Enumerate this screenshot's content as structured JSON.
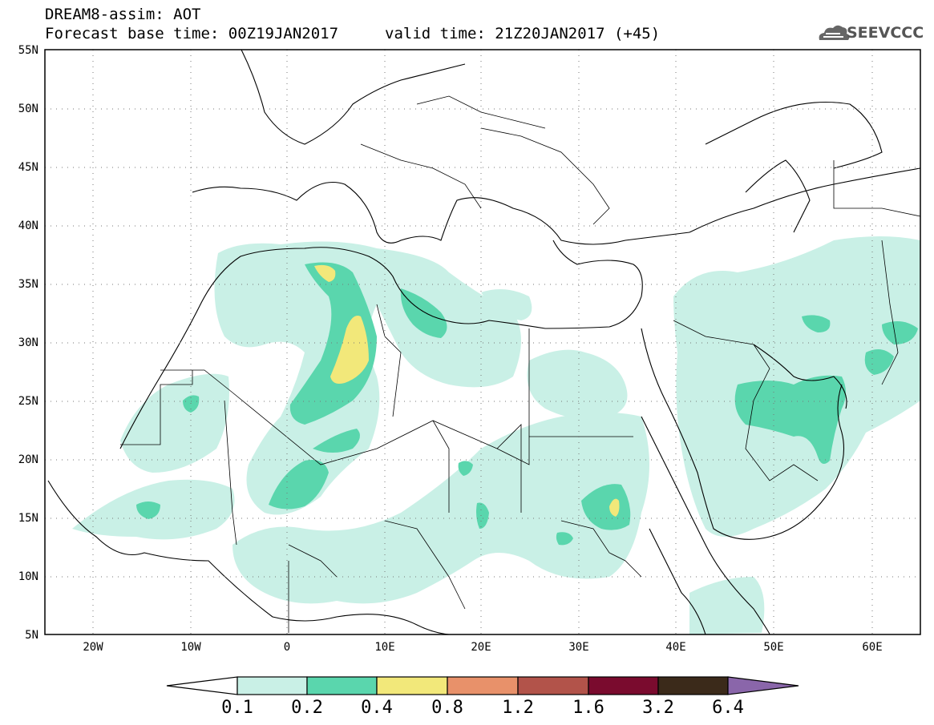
{
  "title": {
    "line1": "DREAM8-assim: AOT",
    "line2": "Forecast base time: 00Z19JAN2017",
    "valid": "valid time: 21Z20JAN2017 (+45)"
  },
  "logo": {
    "text": "SEEVCCC",
    "icon": "cloud-icon"
  },
  "map": {
    "lat_ticks": [
      "55N",
      "50N",
      "45N",
      "40N",
      "35N",
      "30N",
      "25N",
      "20N",
      "15N",
      "10N",
      "5N"
    ],
    "lon_ticks": [
      "20W",
      "10W",
      "0",
      "10E",
      "20E",
      "30E",
      "40E",
      "50E",
      "60E"
    ],
    "lat_range": [
      5,
      55
    ],
    "lon_range": [
      -25,
      65
    ]
  },
  "colorbar": {
    "labels": [
      "0.1",
      "0.2",
      "0.4",
      "0.8",
      "1.2",
      "1.6",
      "3.2",
      "6.4"
    ],
    "colors": [
      "#c9f0e6",
      "#5ad6ad",
      "#f2e87a",
      "#e8916a",
      "#b2534a",
      "#7a0b2e",
      "#3b2a1a",
      "#8a66aa"
    ]
  }
}
